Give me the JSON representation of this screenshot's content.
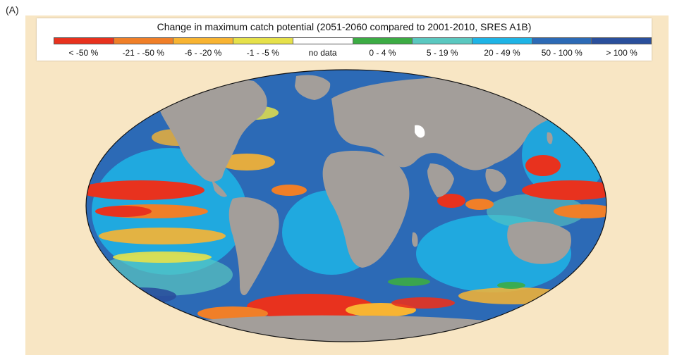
{
  "panel_label": "(A)",
  "legend": {
    "title": "Change in maximum catch potential (2051-2060 compared to 2001-2010, SRES A1B)",
    "items": [
      {
        "label": "< -50 %",
        "color": "#e8321e"
      },
      {
        "label": "-21 - -50 %",
        "color": "#f07f28"
      },
      {
        "label": "-6 - -20 %",
        "color": "#f8b432"
      },
      {
        "label": "-1 - -5 %",
        "color": "#e6e14a"
      },
      {
        "label": "no data",
        "color": "#ffffff"
      },
      {
        "label": "0 - 4 %",
        "color": "#3cac44"
      },
      {
        "label": "5 - 19 %",
        "color": "#5ac8c0"
      },
      {
        "label": "20 - 49 %",
        "color": "#1eb4e6"
      },
      {
        "label": "50 - 100 %",
        "color": "#2c6ab6"
      },
      {
        "label": "> 100 %",
        "color": "#2a4f9c"
      }
    ]
  },
  "map": {
    "projection": "Robinson-like world map",
    "ocean_colors": {
      "decline_strong": "#e8321e",
      "decline_mid": "#f07f28",
      "decline_low": "#f8b432",
      "decline_minor": "#e6e14a",
      "increase_small": "#3cac44",
      "increase_low": "#5ac8c0",
      "increase_mid": "#1eb4e6",
      "increase_high": "#2c6ab6",
      "increase_very_high": "#2a4f9c"
    },
    "land_color": "#a39e9a",
    "no_data_color": "#ffffff"
  }
}
